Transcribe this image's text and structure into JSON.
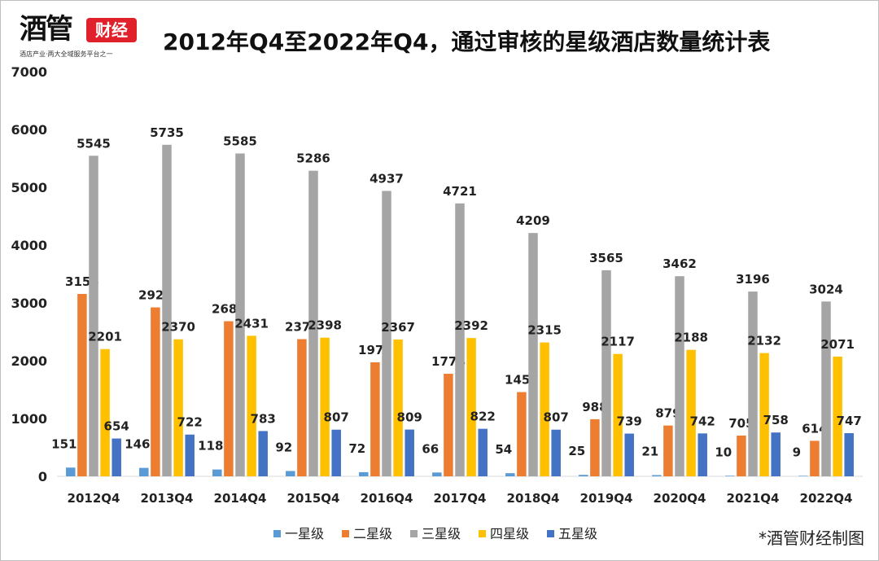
{
  "logo": {
    "main_text": "酒管",
    "tag_text": "财经",
    "slogan": "酒店产业·两大全域服务平台之一"
  },
  "credit": "*酒管财经制图",
  "chart_data": {
    "type": "bar",
    "title": "2012年Q4至2022年Q4，通过审核的星级酒店数量统计表",
    "xlabel": "",
    "ylabel": "",
    "ylim": [
      0,
      7000
    ],
    "yticks": [
      0,
      1000,
      2000,
      3000,
      4000,
      5000,
      6000,
      7000
    ],
    "grid": false,
    "legend_position": "bottom",
    "categories": [
      "2012Q4",
      "2013Q4",
      "2014Q4",
      "2015Q4",
      "2016Q4",
      "2017Q4",
      "2018Q4",
      "2019Q4",
      "2020Q4",
      "2021Q4",
      "2022Q4"
    ],
    "series": [
      {
        "name": "一星级",
        "color": "#5b9bd5",
        "values": [
          151,
          146,
          118,
          92,
          72,
          66,
          54,
          25,
          21,
          10,
          9
        ]
      },
      {
        "name": "二星级",
        "color": "#ed7d31",
        "values": [
          3155,
          2922,
          2683,
          2373,
          1972,
          1774,
          1457,
          988,
          879,
          705,
          614
        ]
      },
      {
        "name": "三星级",
        "color": "#a5a5a5",
        "values": [
          5545,
          5735,
          5585,
          5286,
          4937,
          4721,
          4209,
          3565,
          3462,
          3196,
          3024
        ]
      },
      {
        "name": "四星级",
        "color": "#ffc000",
        "values": [
          2201,
          2370,
          2431,
          2398,
          2367,
          2392,
          2315,
          2117,
          2188,
          2132,
          2071
        ]
      },
      {
        "name": "五星级",
        "color": "#4472c4",
        "values": [
          654,
          722,
          783,
          807,
          809,
          822,
          807,
          739,
          742,
          758,
          747
        ]
      }
    ]
  }
}
